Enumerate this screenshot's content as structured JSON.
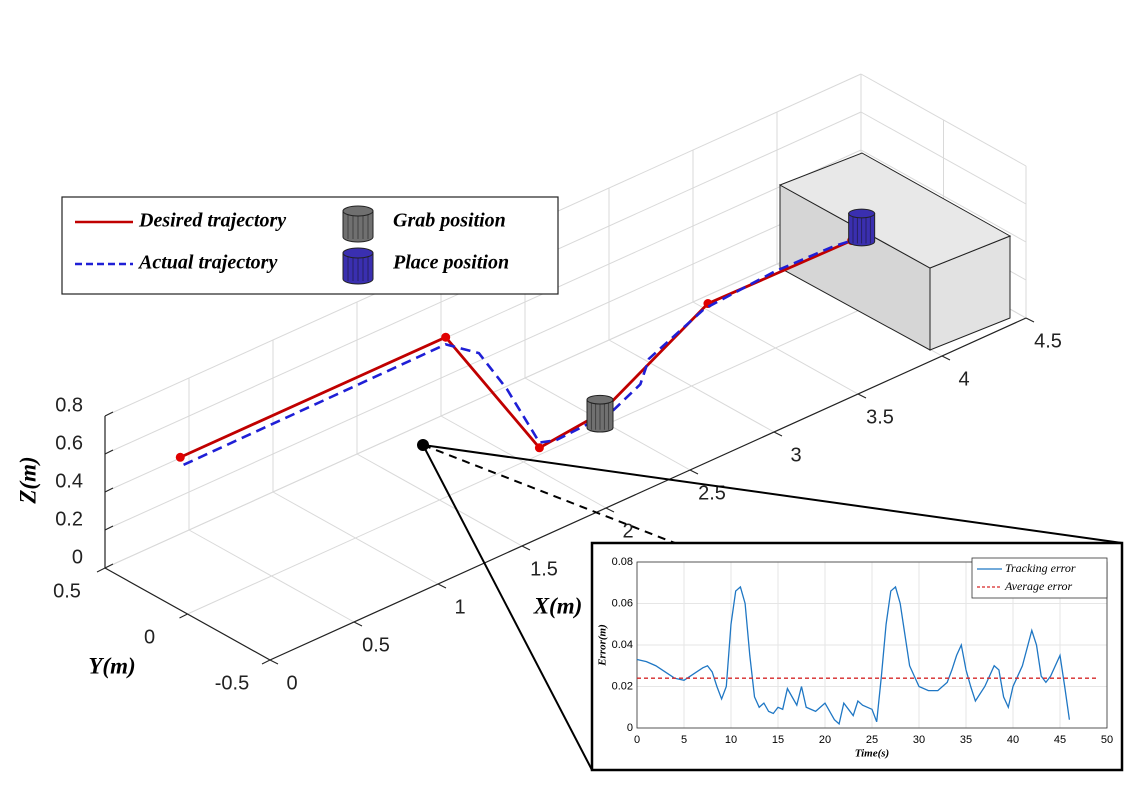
{
  "chart_data": [
    {
      "type": "line3d",
      "xlabel": "X(m)",
      "ylabel": "Y(m)",
      "zlabel": "Z(m)",
      "xlim": [
        0,
        4.5
      ],
      "ylim": [
        -0.5,
        0.5
      ],
      "zlim": [
        0,
        0.8
      ],
      "xticks": [
        0,
        0.5,
        1,
        1.5,
        2,
        2.5,
        3,
        3.5,
        4,
        4.5
      ],
      "yticks": [
        -0.5,
        0,
        0.5
      ],
      "zticks": [
        0,
        0.2,
        0.4,
        0.6,
        0.8
      ],
      "grid": true,
      "series": [
        {
          "name": "Desired trajectory",
          "color": "#c00000",
          "style": "solid",
          "x": [
            0.34,
            1.92,
            1.8,
            2.2,
            2.98,
            3.6
          ],
          "y": [
            0.39,
            0.39,
            -0.3,
            -0.26,
            -0.12,
            -0.36
          ],
          "z": [
            0.5,
            0.5,
            0.3,
            0.3,
            0.5,
            0.7
          ]
        },
        {
          "name": "Actual trajectory",
          "color": "#1f1fd6",
          "style": "dashed",
          "x": [
            0.34,
            1.9,
            1.98,
            1.95,
            1.82,
            1.9,
            2.25,
            2.45,
            2.55,
            2.95,
            3.3,
            3.55,
            3.6
          ],
          "y": [
            0.37,
            0.37,
            0.25,
            0.05,
            -0.28,
            -0.3,
            -0.28,
            -0.25,
            -0.2,
            -0.13,
            -0.2,
            -0.3,
            -0.36
          ],
          "z": [
            0.47,
            0.48,
            0.46,
            0.38,
            0.31,
            0.3,
            0.3,
            0.35,
            0.42,
            0.49,
            0.58,
            0.66,
            0.7
          ]
        }
      ],
      "markers": [
        {
          "name": "Grab position",
          "color": "#707070",
          "x": 2.2,
          "y": -0.26,
          "z": 0.3
        },
        {
          "name": "Place position",
          "color": "#3a2fb0",
          "x": 3.62,
          "y": -0.4,
          "z": 0.78
        }
      ]
    },
    {
      "type": "line",
      "xlabel": "Time(s)",
      "ylabel": "Error(m)",
      "xlim": [
        0,
        50
      ],
      "ylim": [
        0,
        0.08
      ],
      "xticks": [
        0,
        5,
        10,
        15,
        20,
        25,
        30,
        35,
        40,
        45,
        50
      ],
      "yticks": [
        0,
        0.02,
        0.04,
        0.06,
        0.08
      ],
      "grid": true,
      "series": [
        {
          "name": "Tracking error",
          "color": "#1f77c4",
          "style": "solid",
          "x": [
            0,
            1,
            2,
            3,
            4,
            5,
            6,
            7,
            7.5,
            8,
            8.5,
            9,
            9.5,
            10,
            10.5,
            11,
            11.5,
            12,
            12.5,
            13,
            13.5,
            14,
            14.5,
            15,
            15.5,
            16,
            16.5,
            17,
            17.5,
            18,
            19,
            19.5,
            20,
            21,
            21.5,
            22,
            23,
            23.5,
            24,
            25,
            25.5,
            26,
            26.5,
            27,
            27.5,
            28,
            28.5,
            29,
            30,
            31,
            32,
            33,
            33.5,
            34,
            34.5,
            35,
            35.5,
            36,
            37,
            38,
            38.5,
            39,
            39.5,
            40,
            41,
            42,
            42.5,
            43,
            43.5,
            44,
            45,
            45.5,
            46
          ],
          "values": [
            0.033,
            0.032,
            0.03,
            0.027,
            0.024,
            0.023,
            0.026,
            0.029,
            0.03,
            0.027,
            0.02,
            0.014,
            0.02,
            0.05,
            0.066,
            0.068,
            0.06,
            0.035,
            0.015,
            0.01,
            0.012,
            0.008,
            0.007,
            0.01,
            0.009,
            0.019,
            0.015,
            0.011,
            0.02,
            0.01,
            0.008,
            0.01,
            0.012,
            0.004,
            0.002,
            0.012,
            0.006,
            0.013,
            0.011,
            0.009,
            0.003,
            0.025,
            0.05,
            0.066,
            0.068,
            0.06,
            0.045,
            0.03,
            0.02,
            0.018,
            0.018,
            0.022,
            0.028,
            0.035,
            0.04,
            0.028,
            0.02,
            0.013,
            0.02,
            0.03,
            0.028,
            0.015,
            0.01,
            0.02,
            0.03,
            0.047,
            0.04,
            0.025,
            0.022,
            0.025,
            0.035,
            0.02,
            0.004
          ]
        },
        {
          "name": "Average error",
          "color": "#d62728",
          "style": "dashed",
          "x": [
            0,
            49
          ],
          "values": [
            0.024,
            0.024
          ]
        }
      ]
    }
  ]
}
